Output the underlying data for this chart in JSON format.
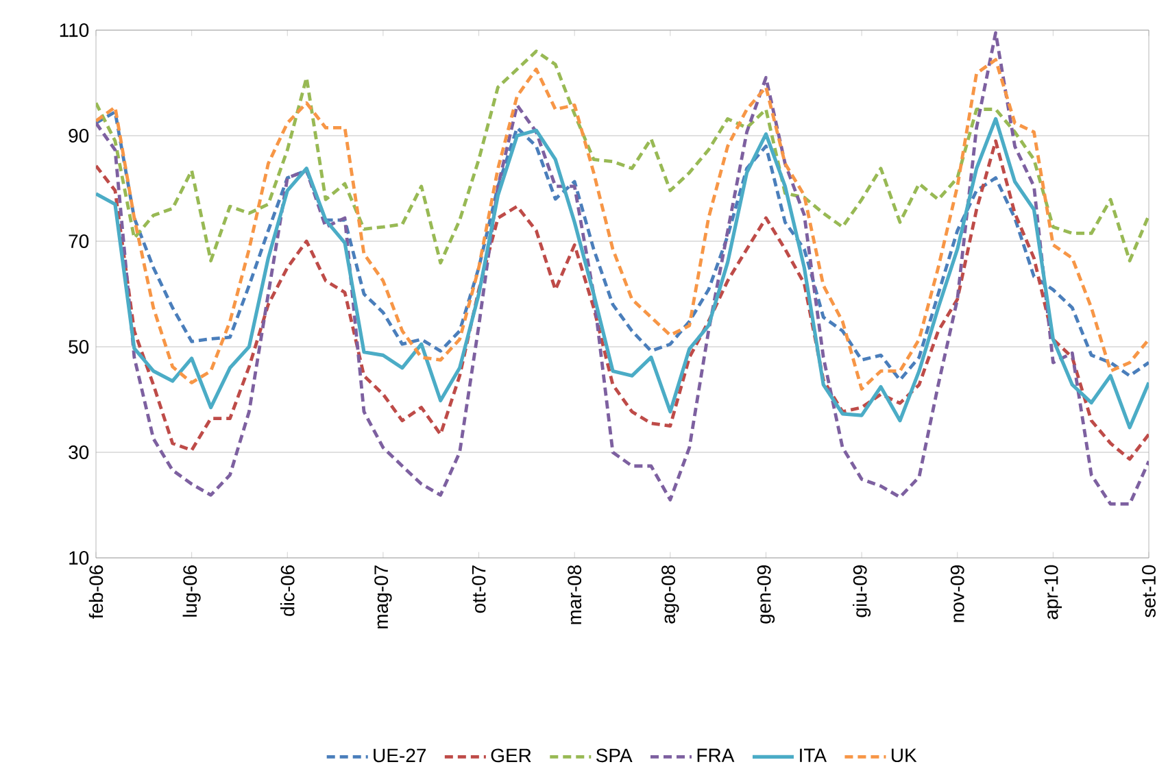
{
  "chart_data": {
    "type": "line",
    "categories": [
      "feb-06",
      null,
      null,
      null,
      null,
      "lug-06",
      null,
      null,
      null,
      null,
      "dic-06",
      null,
      null,
      null,
      null,
      "mag-07",
      null,
      null,
      null,
      null,
      "ott-07",
      null,
      null,
      null,
      null,
      "mar-08",
      null,
      null,
      null,
      null,
      "ago-08",
      null,
      null,
      null,
      null,
      "gen-09",
      null,
      null,
      null,
      null,
      "giu-09",
      null,
      null,
      null,
      null,
      "nov-09",
      null,
      null,
      null,
      null,
      "apr-10",
      null,
      null,
      null,
      null,
      "set-10"
    ],
    "series": [
      {
        "name": "UE-27",
        "color": "#4a7ebb",
        "line_style": "dashed",
        "values": [
          92.4,
          94.5,
          74.4,
          65,
          57.4,
          51,
          51.5,
          51.8,
          61.6,
          72,
          82,
          83.4,
          74,
          74,
          60,
          56.5,
          50.5,
          51.4,
          49.2,
          53,
          65,
          80.4,
          91.5,
          88,
          78,
          81.3,
          68.5,
          58,
          53,
          49.2,
          50.5,
          54.8,
          60.8,
          71,
          83.8,
          88,
          73.6,
          68.5,
          55.6,
          53,
          47.5,
          48.4,
          43.7,
          48,
          60,
          72,
          79.6,
          82,
          74.4,
          63.3,
          60.8,
          57.4,
          48.4,
          47,
          44.5,
          47
        ]
      },
      {
        "name": "GER",
        "color": "#be4b48",
        "line_style": "dashed",
        "values": [
          84.3,
          79.6,
          53,
          42.8,
          31.7,
          30.4,
          36.4,
          36.4,
          46.2,
          58,
          65,
          70,
          62.5,
          60.3,
          44.5,
          41,
          36,
          38.5,
          33.4,
          44.5,
          60.8,
          74.4,
          76.6,
          72,
          60.8,
          69.3,
          57.4,
          42.8,
          37.7,
          35.5,
          35,
          48,
          54.8,
          62.5,
          68.5,
          74.4,
          68.5,
          62,
          43.7,
          37.7,
          38.5,
          41,
          39.3,
          42.8,
          53,
          59,
          76,
          89,
          75.3,
          66.8,
          51.4,
          48,
          36,
          31.7,
          28.7,
          33.4
        ]
      },
      {
        "name": "SPA",
        "color": "#98b954",
        "line_style": "dashed",
        "values": [
          96.2,
          89,
          70.6,
          74.9,
          76.2,
          83.4,
          66.3,
          76.6,
          75.3,
          77,
          87.3,
          101,
          77.9,
          80.9,
          72.3,
          72.7,
          73.2,
          80.4,
          65.9,
          74,
          85.5,
          99.2,
          102.6,
          106,
          103.5,
          94.1,
          85.5,
          85.1,
          83.8,
          89.4,
          79.6,
          83,
          87.3,
          93.2,
          91.5,
          95,
          79.1,
          78.3,
          75.3,
          72.7,
          77.9,
          83.8,
          73.6,
          80.9,
          77.9,
          82,
          95,
          95,
          90.7,
          85.5,
          72.7,
          71.5,
          71.5,
          77.9,
          66.3,
          74.9
        ]
      },
      {
        "name": "FRA",
        "color": "#7d60a0",
        "line_style": "dashed",
        "values": [
          92.4,
          87.3,
          48,
          32.6,
          26.6,
          24,
          21.9,
          25.7,
          37.7,
          60,
          82,
          83.4,
          72.7,
          74.4,
          37.7,
          30.9,
          27.4,
          24,
          21.9,
          30,
          54,
          80.4,
          95.8,
          90.7,
          80.4,
          80.4,
          60,
          30,
          27.4,
          27.4,
          21,
          30.9,
          53,
          71.9,
          90.7,
          101,
          84.7,
          75,
          48,
          30.9,
          24.9,
          23.6,
          21.5,
          25.3,
          42.8,
          59,
          91.5,
          109.5,
          88,
          80.4,
          47,
          48.8,
          25.7,
          20.2,
          20.2,
          28.3
        ]
      },
      {
        "name": "ITA",
        "color": "#4bacc6",
        "line_style": "solid",
        "values": [
          79,
          77,
          49.7,
          45.4,
          43.5,
          47.8,
          38.5,
          46,
          50,
          66.8,
          79.6,
          83.8,
          74,
          69.7,
          49,
          48.4,
          46,
          50.5,
          39.8,
          46,
          60,
          78.7,
          90,
          91,
          85.5,
          73.6,
          60,
          45.4,
          44.5,
          48,
          37.7,
          49.6,
          54,
          66,
          83,
          90.3,
          80.4,
          65,
          42.8,
          37.3,
          37,
          42.4,
          36,
          45.4,
          57.4,
          68.5,
          83.8,
          93.2,
          81.3,
          76,
          51.4,
          42.8,
          39.4,
          44.5,
          34.7,
          43.2
        ]
      },
      {
        "name": "UK",
        "color": "#f79646",
        "line_style": "dashed",
        "values": [
          92.8,
          95.4,
          74.4,
          57.4,
          46.2,
          43.2,
          45.4,
          54.8,
          68.5,
          84.7,
          92.4,
          96.2,
          91.5,
          91.5,
          67.6,
          62.5,
          53,
          48,
          47.5,
          51.4,
          65,
          83.8,
          97.5,
          102.6,
          95,
          95.8,
          83,
          68.5,
          59,
          55.6,
          52.2,
          54,
          74.4,
          88,
          95,
          99.2,
          84.7,
          78.7,
          61.6,
          54.8,
          42,
          45.4,
          45.4,
          51.4,
          65,
          80.4,
          101.8,
          104.4,
          92.4,
          90.7,
          69.3,
          66.8,
          57.4,
          45.4,
          47,
          51.4
        ]
      }
    ],
    "ylim": [
      10,
      110
    ],
    "yticks": [
      10,
      30,
      50,
      70,
      90,
      110
    ],
    "grid": "y",
    "legend": "bottom",
    "marker": "none"
  }
}
